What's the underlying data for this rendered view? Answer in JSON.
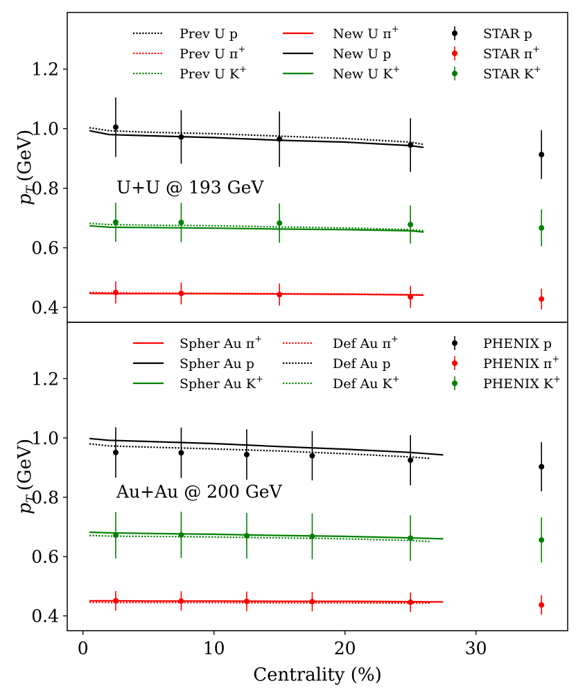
{
  "chart_data": [
    {
      "type": "line",
      "panel": "top",
      "annotation": "U+U @ 193 GeV",
      "xlabel": "Centrality (%)",
      "ylabel": "p_T (GeV)",
      "ylabel_main": "p",
      "ylabel_sub": "T",
      "ylabel_unit": "(GeV)",
      "xlim": [
        -1.2,
        37
      ],
      "ylim": [
        0.35,
        1.39
      ],
      "yticks": [
        0.4,
        0.6,
        0.8,
        1.0,
        1.2
      ],
      "ytick_labels": [
        "0.4",
        "0.6",
        "0.8",
        "1.0",
        "1.2"
      ],
      "legend_placement": "top",
      "grid": false,
      "series": [
        {
          "name": "Prev U p",
          "base": "Prev U p",
          "sup": "",
          "style": "dotted",
          "color": "#000000",
          "x": [
            0.5,
            2,
            5,
            10,
            15,
            20,
            25,
            26
          ],
          "y": [
            1.003,
            0.993,
            0.988,
            0.983,
            0.975,
            0.967,
            0.955,
            0.947
          ]
        },
        {
          "name": "Prev U π+",
          "base": "Prev U π",
          "sup": "+",
          "style": "dotted",
          "color": "#ff0000",
          "x": [
            0.5,
            2,
            5,
            10,
            15,
            20,
            25,
            26
          ],
          "y": [
            0.45,
            0.449,
            0.448,
            0.447,
            0.446,
            0.445,
            0.443,
            0.442
          ]
        },
        {
          "name": "Prev U K+",
          "base": "Prev U K",
          "sup": "+",
          "style": "dotted",
          "color": "#008000",
          "x": [
            0.5,
            2,
            5,
            10,
            15,
            20,
            25,
            26
          ],
          "y": [
            0.682,
            0.678,
            0.676,
            0.674,
            0.67,
            0.667,
            0.661,
            0.657
          ]
        },
        {
          "name": "New U π+",
          "base": "New U π",
          "sup": "+",
          "style": "solid",
          "color": "#ff0000",
          "x": [
            0.5,
            2,
            5,
            10,
            15,
            20,
            25,
            26
          ],
          "y": [
            0.447,
            0.446,
            0.446,
            0.446,
            0.445,
            0.444,
            0.442,
            0.441
          ]
        },
        {
          "name": "New U p",
          "base": "New U p",
          "sup": "",
          "style": "solid",
          "color": "#000000",
          "x": [
            0.5,
            2,
            5,
            10,
            15,
            20,
            25,
            26
          ],
          "y": [
            0.993,
            0.98,
            0.976,
            0.97,
            0.961,
            0.955,
            0.943,
            0.937
          ]
        },
        {
          "name": "New U K+",
          "base": "New U K",
          "sup": "+",
          "style": "solid",
          "color": "#008000",
          "x": [
            0.5,
            2,
            5,
            10,
            15,
            20,
            25,
            26
          ],
          "y": [
            0.674,
            0.669,
            0.668,
            0.666,
            0.663,
            0.661,
            0.657,
            0.653
          ]
        }
      ],
      "points": [
        {
          "name": "STAR p",
          "base": "STAR p",
          "sup": "",
          "color": "#000000",
          "x": [
            2.5,
            7.5,
            15,
            25,
            35
          ],
          "y": [
            1.005,
            0.972,
            0.965,
            0.945,
            0.913
          ],
          "err": [
            0.1,
            0.09,
            0.093,
            0.09,
            0.082
          ]
        },
        {
          "name": "STAR π+",
          "base": "STAR π",
          "sup": "+",
          "color": "#ff0000",
          "x": [
            2.5,
            7.5,
            15,
            25,
            35
          ],
          "y": [
            0.45,
            0.447,
            0.443,
            0.435,
            0.428
          ],
          "err": [
            0.037,
            0.037,
            0.037,
            0.037,
            0.035
          ]
        },
        {
          "name": "STAR K+",
          "base": "STAR K",
          "sup": "+",
          "color": "#008000",
          "x": [
            2.5,
            7.5,
            15,
            25,
            35
          ],
          "y": [
            0.686,
            0.685,
            0.683,
            0.678,
            0.667
          ],
          "err": [
            0.066,
            0.066,
            0.066,
            0.064,
            0.062
          ]
        }
      ]
    },
    {
      "type": "line",
      "panel": "bottom",
      "annotation": "Au+Au @ 200 GeV",
      "xlabel": "Centrality (%)",
      "ylabel": "p_T (GeV)",
      "ylabel_main": "p",
      "ylabel_sub": "T",
      "ylabel_unit": "(GeV)",
      "xlim": [
        -1.2,
        37
      ],
      "ylim": [
        0.35,
        1.39
      ],
      "yticks": [
        0.4,
        0.6,
        0.8,
        1.0,
        1.2
      ],
      "ytick_labels": [
        "0.4",
        "0.6",
        "0.8",
        "1.0",
        "1.2"
      ],
      "xticks": [
        0,
        10,
        20,
        30
      ],
      "xtick_labels": [
        "0",
        "10",
        "20",
        "30"
      ],
      "legend_placement": "top",
      "grid": false,
      "series": [
        {
          "name": "Spher Au π+",
          "base": "Spher Au π",
          "sup": "+",
          "style": "solid",
          "color": "#ff0000",
          "x": [
            0.5,
            2,
            5,
            10,
            15,
            20,
            25,
            27.5
          ],
          "y": [
            0.451,
            0.451,
            0.45,
            0.45,
            0.449,
            0.449,
            0.448,
            0.447
          ]
        },
        {
          "name": "Spher Au p",
          "base": "Spher Au p",
          "sup": "",
          "style": "solid",
          "color": "#000000",
          "x": [
            0.5,
            2,
            5,
            10,
            15,
            20,
            25,
            27.5
          ],
          "y": [
            0.998,
            0.992,
            0.988,
            0.981,
            0.971,
            0.962,
            0.951,
            0.943
          ]
        },
        {
          "name": "Spher Au K+",
          "base": "Spher Au K",
          "sup": "+",
          "style": "solid",
          "color": "#008000",
          "x": [
            0.5,
            2,
            5,
            10,
            15,
            20,
            25,
            27.5
          ],
          "y": [
            0.682,
            0.68,
            0.678,
            0.675,
            0.671,
            0.668,
            0.663,
            0.66
          ]
        },
        {
          "name": "Def Au π+",
          "base": "Def Au π",
          "sup": "+",
          "style": "dotted",
          "color": "#ff0000",
          "x": [
            0.5,
            2,
            5,
            10,
            15,
            20,
            25,
            26.5
          ],
          "y": [
            0.446,
            0.445,
            0.445,
            0.445,
            0.444,
            0.444,
            0.443,
            0.443
          ]
        },
        {
          "name": "Def Au p",
          "base": "Def Au p",
          "sup": "",
          "style": "dotted",
          "color": "#000000",
          "x": [
            0.5,
            2,
            5,
            10,
            15,
            20,
            25,
            26.5
          ],
          "y": [
            0.98,
            0.973,
            0.969,
            0.963,
            0.956,
            0.947,
            0.936,
            0.931
          ]
        },
        {
          "name": "Def Au K+",
          "base": "Def Au K",
          "sup": "+",
          "style": "dotted",
          "color": "#008000",
          "x": [
            0.5,
            2,
            5,
            10,
            15,
            20,
            25,
            26.5
          ],
          "y": [
            0.671,
            0.669,
            0.668,
            0.666,
            0.663,
            0.66,
            0.654,
            0.651
          ]
        }
      ],
      "points": [
        {
          "name": "PHENIX p",
          "base": "PHENIX p",
          "sup": "",
          "color": "#000000",
          "x": [
            2.5,
            7.5,
            12.5,
            17.5,
            25,
            35
          ],
          "y": [
            0.951,
            0.95,
            0.944,
            0.94,
            0.925,
            0.903
          ],
          "err": [
            0.085,
            0.085,
            0.085,
            0.083,
            0.085,
            0.083
          ]
        },
        {
          "name": "PHENIX π+",
          "base": "PHENIX π",
          "sup": "+",
          "color": "#ff0000",
          "x": [
            2.5,
            7.5,
            12.5,
            17.5,
            25,
            35
          ],
          "y": [
            0.451,
            0.45,
            0.449,
            0.448,
            0.446,
            0.437
          ],
          "err": [
            0.033,
            0.033,
            0.033,
            0.033,
            0.033,
            0.033
          ]
        },
        {
          "name": "PHENIX K+",
          "base": "PHENIX K",
          "sup": "+",
          "color": "#008000",
          "x": [
            2.5,
            7.5,
            12.5,
            17.5,
            25,
            35
          ],
          "y": [
            0.672,
            0.673,
            0.67,
            0.668,
            0.662,
            0.656
          ],
          "err": [
            0.078,
            0.078,
            0.077,
            0.077,
            0.077,
            0.076
          ]
        }
      ]
    }
  ]
}
